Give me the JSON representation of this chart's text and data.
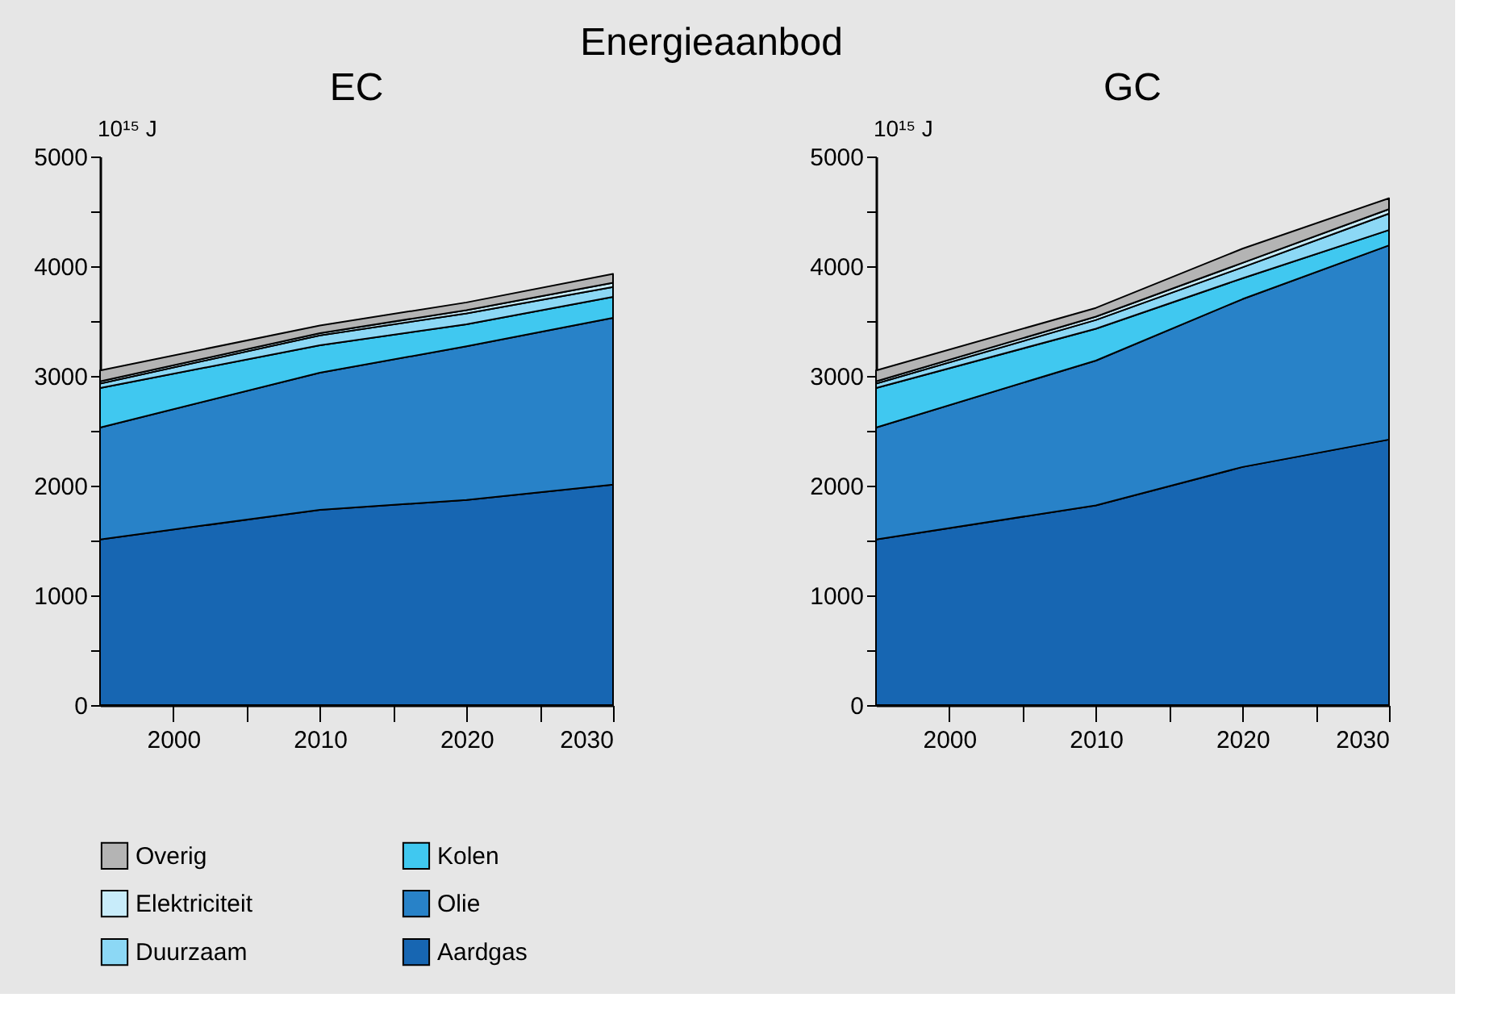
{
  "chart_data": [
    {
      "type": "area",
      "stacked": true,
      "title": "EC",
      "ylabel": "10¹⁵ J",
      "annotations": [
        "Energieaanbod"
      ],
      "legend": "bottom",
      "grid": false,
      "x": [
        1995,
        2010,
        2020,
        2030
      ],
      "xlim": [
        1995,
        2030
      ],
      "xticks": [
        {
          "value": 2000,
          "label": "2000"
        },
        {
          "value": 2005,
          "label": null
        },
        {
          "value": 2010,
          "label": "2010"
        },
        {
          "value": 2015,
          "label": null
        },
        {
          "value": 2020,
          "label": "2020"
        },
        {
          "value": 2025,
          "label": null
        },
        {
          "value": 2030,
          "label": "2030"
        }
      ],
      "ylim": [
        0,
        5000
      ],
      "yticks": [
        0,
        {
          "value": 500,
          "label": null
        },
        1000,
        {
          "value": 1500,
          "label": null
        },
        2000,
        {
          "value": 2500,
          "label": null
        },
        3000,
        {
          "value": 3500,
          "label": null
        },
        4000,
        {
          "value": 4500,
          "label": null
        },
        5000
      ],
      "series": [
        {
          "name": "Aardgas",
          "color": "#1766b2",
          "values": [
            1510,
            1780,
            1870,
            2010
          ]
        },
        {
          "name": "Olie",
          "color": "#2882c8",
          "values": [
            1020,
            1250,
            1400,
            1520
          ]
        },
        {
          "name": "Kolen",
          "color": "#40c8f0",
          "values": [
            360,
            250,
            200,
            190
          ]
        },
        {
          "name": "Duurzaam",
          "color": "#8cd8f5",
          "values": [
            40,
            90,
            100,
            90
          ]
        },
        {
          "name": "Elektriciteit",
          "color": "#c8ecfa",
          "values": [
            20,
            20,
            30,
            40
          ]
        },
        {
          "name": "Overig",
          "color": "#b4b4b4",
          "values": [
            100,
            70,
            70,
            80
          ]
        }
      ]
    },
    {
      "type": "area",
      "stacked": true,
      "title": "GC",
      "ylabel": "10¹⁵ J",
      "legend": false,
      "grid": false,
      "x": [
        1995,
        2010,
        2020,
        2030
      ],
      "xlim": [
        1995,
        2030
      ],
      "xticks": [
        {
          "value": 2000,
          "label": "2000"
        },
        {
          "value": 2005,
          "label": null
        },
        {
          "value": 2010,
          "label": "2010"
        },
        {
          "value": 2015,
          "label": null
        },
        {
          "value": 2020,
          "label": "2020"
        },
        {
          "value": 2025,
          "label": null
        },
        {
          "value": 2030,
          "label": "2030"
        }
      ],
      "ylim": [
        0,
        5000
      ],
      "yticks": [
        0,
        {
          "value": 500,
          "label": null
        },
        1000,
        {
          "value": 1500,
          "label": null
        },
        2000,
        {
          "value": 2500,
          "label": null
        },
        3000,
        {
          "value": 3500,
          "label": null
        },
        4000,
        {
          "value": 4500,
          "label": null
        },
        5000
      ],
      "series": [
        {
          "color": "#1766b2",
          "values": [
            1510,
            1820,
            2170,
            2420
          ]
        },
        {
          "color": "#2882c8",
          "values": [
            1020,
            1320,
            1530,
            1770
          ]
        },
        {
          "color": "#40c8f0",
          "values": [
            360,
            290,
            190,
            140
          ]
        },
        {
          "color": "#8cd8f5",
          "values": [
            40,
            80,
            100,
            150
          ]
        },
        {
          "color": "#c8ecfa",
          "values": [
            20,
            30,
            40,
            40
          ]
        },
        {
          "color": "#b4b4b4",
          "values": [
            100,
            80,
            130,
            100
          ]
        }
      ]
    }
  ]
}
